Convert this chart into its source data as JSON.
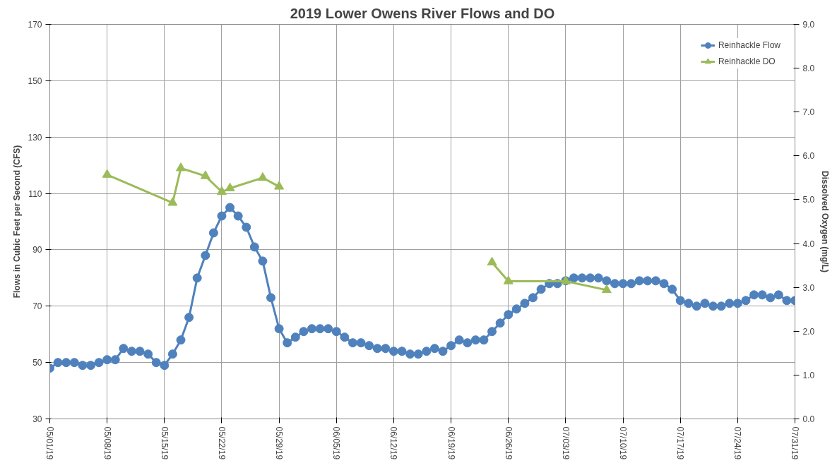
{
  "chart_data": {
    "type": "line",
    "title": "2019 Lower Owens River Flows and DO",
    "ylabel": "Flows in Cubic Feet per Second (CFS)",
    "y2label": "Dissolved Oxygen (mg/L)",
    "xlim": [
      "2019-05-01",
      "2019-07-31"
    ],
    "xticks": [
      {
        "value": "2019-05-01",
        "label": "05/01/19"
      },
      {
        "value": "2019-05-08",
        "label": "05/08/19"
      },
      {
        "value": "2019-05-15",
        "label": "05/15/19"
      },
      {
        "value": "2019-05-22",
        "label": "05/22/19"
      },
      {
        "value": "2019-05-29",
        "label": "05/29/19"
      },
      {
        "value": "2019-06-05",
        "label": "06/05/19"
      },
      {
        "value": "2019-06-12",
        "label": "06/12/19"
      },
      {
        "value": "2019-06-19",
        "label": "06/19/19"
      },
      {
        "value": "2019-06-26",
        "label": "06/26/19"
      },
      {
        "value": "2019-07-03",
        "label": "07/03/19"
      },
      {
        "value": "2019-07-10",
        "label": "07/10/19"
      },
      {
        "value": "2019-07-17",
        "label": "07/17/19"
      },
      {
        "value": "2019-07-24",
        "label": "07/24/19"
      },
      {
        "value": "2019-07-31",
        "label": "07/31/19"
      }
    ],
    "ylim": [
      30,
      170
    ],
    "yticks": [
      30,
      50,
      70,
      90,
      110,
      130,
      150,
      170
    ],
    "y2lim": [
      0,
      9
    ],
    "y2ticks": [
      {
        "value": 0,
        "label": "0.0"
      },
      {
        "value": 1,
        "label": "1.0"
      },
      {
        "value": 2,
        "label": "2.0"
      },
      {
        "value": 3,
        "label": "3.0"
      },
      {
        "value": 4,
        "label": "4.0"
      },
      {
        "value": 5,
        "label": "5.0"
      },
      {
        "value": 6,
        "label": "6.0"
      },
      {
        "value": 7,
        "label": "7.0"
      },
      {
        "value": 8,
        "label": "8.0"
      },
      {
        "value": 9,
        "label": "9.0"
      }
    ],
    "grid": true,
    "legend": "top right",
    "line_style": "solid",
    "series": [
      {
        "name": "Reinhackle Flow",
        "color": "#4f81bd",
        "marker": "circle",
        "x": [
          "2019-05-01",
          "2019-05-02",
          "2019-05-03",
          "2019-05-04",
          "2019-05-05",
          "2019-05-06",
          "2019-05-07",
          "2019-05-08",
          "2019-05-09",
          "2019-05-10",
          "2019-05-11",
          "2019-05-12",
          "2019-05-13",
          "2019-05-14",
          "2019-05-15",
          "2019-05-16",
          "2019-05-17",
          "2019-05-18",
          "2019-05-19",
          "2019-05-20",
          "2019-05-21",
          "2019-05-22",
          "2019-05-23",
          "2019-05-24",
          "2019-05-25",
          "2019-05-26",
          "2019-05-27",
          "2019-05-28",
          "2019-05-29",
          "2019-05-30",
          "2019-05-31",
          "2019-06-01",
          "2019-06-02",
          "2019-06-03",
          "2019-06-04",
          "2019-06-05",
          "2019-06-06",
          "2019-06-07",
          "2019-06-08",
          "2019-06-09",
          "2019-06-10",
          "2019-06-11",
          "2019-06-12",
          "2019-06-13",
          "2019-06-14",
          "2019-06-15",
          "2019-06-16",
          "2019-06-17",
          "2019-06-18",
          "2019-06-19",
          "2019-06-20",
          "2019-06-21",
          "2019-06-22",
          "2019-06-23",
          "2019-06-24",
          "2019-06-25",
          "2019-06-26",
          "2019-06-27",
          "2019-06-28",
          "2019-06-29",
          "2019-06-30",
          "2019-07-01",
          "2019-07-02",
          "2019-07-03",
          "2019-07-04",
          "2019-07-05",
          "2019-07-06",
          "2019-07-07",
          "2019-07-08",
          "2019-07-09",
          "2019-07-10",
          "2019-07-11",
          "2019-07-12",
          "2019-07-13",
          "2019-07-14",
          "2019-07-15",
          "2019-07-16",
          "2019-07-17",
          "2019-07-18",
          "2019-07-19",
          "2019-07-20",
          "2019-07-21",
          "2019-07-22",
          "2019-07-23",
          "2019-07-24",
          "2019-07-25",
          "2019-07-26",
          "2019-07-27",
          "2019-07-28",
          "2019-07-29",
          "2019-07-30",
          "2019-07-31"
        ],
        "values": [
          48,
          50,
          50,
          50,
          49,
          49,
          50,
          51,
          51,
          55,
          54,
          54,
          53,
          50,
          49,
          53,
          58,
          66,
          80,
          88,
          96,
          102,
          105,
          102,
          98,
          91,
          86,
          73,
          62,
          57,
          59,
          61,
          62,
          62,
          62,
          61,
          59,
          57,
          57,
          56,
          55,
          55,
          54,
          54,
          53,
          53,
          54,
          55,
          54,
          56,
          58,
          57,
          58,
          58,
          61,
          64,
          67,
          69,
          71,
          73,
          76,
          78,
          78,
          79,
          80,
          80,
          80,
          80,
          79,
          78,
          78,
          78,
          79,
          79,
          79,
          78,
          76,
          72,
          71,
          70,
          71,
          70,
          70,
          71,
          71,
          72,
          74,
          74,
          73,
          74,
          72,
          72
        ]
      },
      {
        "name": "Reinhackle DO",
        "color": "#9bbb59",
        "marker": "triangle",
        "axis": "y2",
        "x": [
          "2019-05-08",
          "2019-05-16",
          "2019-05-17",
          "2019-05-20",
          "2019-05-22",
          "2019-05-23",
          "2019-05-27",
          "2019-05-29",
          "2019-06-10",
          "2019-06-24",
          "2019-06-26",
          "2019-07-03",
          "2019-07-08"
        ],
        "values": [
          5.57,
          4.93,
          5.72,
          5.54,
          5.18,
          5.26,
          5.5,
          5.3,
          null,
          3.57,
          3.14,
          3.14,
          2.94
        ]
      }
    ]
  }
}
